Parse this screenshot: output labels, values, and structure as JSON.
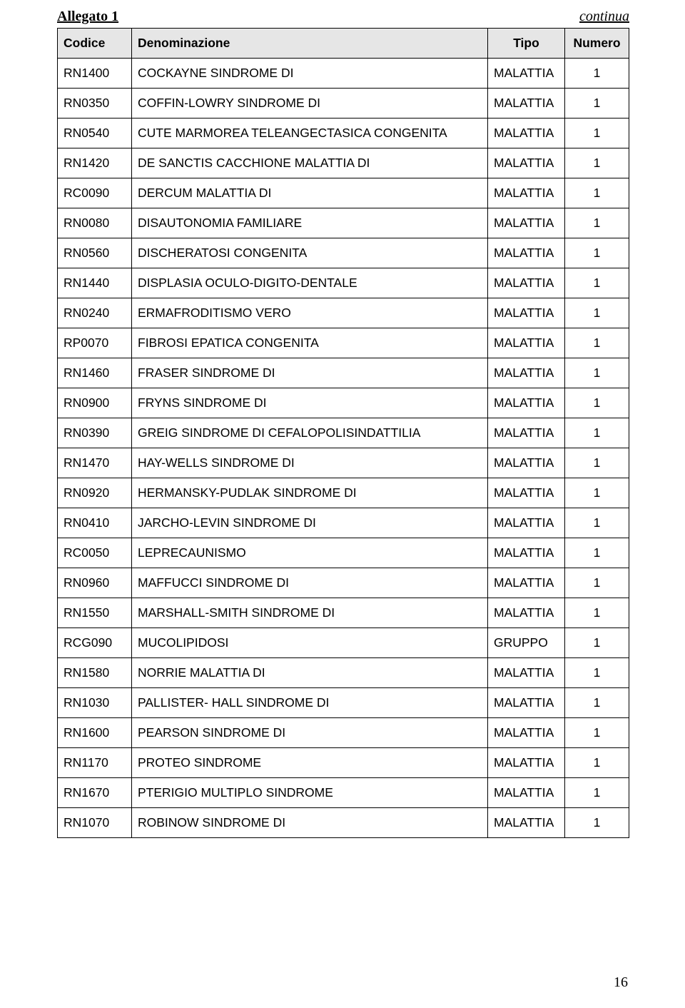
{
  "header": {
    "left": "Allegato 1",
    "right": "continua"
  },
  "table": {
    "columns": [
      "Codice",
      "Denominazione",
      "Tipo",
      "Numero"
    ],
    "rows": [
      [
        "RN1400",
        "COCKAYNE SINDROME DI",
        "MALATTIA",
        "1"
      ],
      [
        "RN0350",
        "COFFIN-LOWRY SINDROME DI",
        "MALATTIA",
        "1"
      ],
      [
        "RN0540",
        "CUTE MARMOREA TELEANGECTASICA CONGENITA",
        "MALATTIA",
        "1"
      ],
      [
        "RN1420",
        "DE SANCTIS CACCHIONE MALATTIA DI",
        "MALATTIA",
        "1"
      ],
      [
        "RC0090",
        "DERCUM MALATTIA DI",
        "MALATTIA",
        "1"
      ],
      [
        "RN0080",
        "DISAUTONOMIA FAMILIARE",
        "MALATTIA",
        "1"
      ],
      [
        "RN0560",
        "DISCHERATOSI CONGENITA",
        "MALATTIA",
        "1"
      ],
      [
        "RN1440",
        "DISPLASIA OCULO-DIGITO-DENTALE",
        "MALATTIA",
        "1"
      ],
      [
        "RN0240",
        "ERMAFRODITISMO VERO",
        "MALATTIA",
        "1"
      ],
      [
        "RP0070",
        "FIBROSI EPATICA CONGENITA",
        "MALATTIA",
        "1"
      ],
      [
        "RN1460",
        "FRASER SINDROME DI",
        "MALATTIA",
        "1"
      ],
      [
        "RN0900",
        "FRYNS SINDROME DI",
        "MALATTIA",
        "1"
      ],
      [
        "RN0390",
        "GREIG SINDROME DI CEFALOPOLISINDATTILIA",
        "MALATTIA",
        "1"
      ],
      [
        "RN1470",
        "HAY-WELLS SINDROME DI",
        "MALATTIA",
        "1"
      ],
      [
        "RN0920",
        "HERMANSKY-PUDLAK SINDROME DI",
        "MALATTIA",
        "1"
      ],
      [
        "RN0410",
        "JARCHO-LEVIN SINDROME DI",
        "MALATTIA",
        "1"
      ],
      [
        "RC0050",
        "LEPRECAUNISMO",
        "MALATTIA",
        "1"
      ],
      [
        "RN0960",
        "MAFFUCCI SINDROME DI",
        "MALATTIA",
        "1"
      ],
      [
        "RN1550",
        "MARSHALL-SMITH SINDROME DI",
        "MALATTIA",
        "1"
      ],
      [
        "RCG090",
        "MUCOLIPIDOSI",
        "GRUPPO",
        "1"
      ],
      [
        "RN1580",
        "NORRIE MALATTIA DI",
        "MALATTIA",
        "1"
      ],
      [
        "RN1030",
        "PALLISTER- HALL SINDROME DI",
        "MALATTIA",
        "1"
      ],
      [
        "RN1600",
        "PEARSON SINDROME DI",
        "MALATTIA",
        "1"
      ],
      [
        "RN1170",
        "PROTEO SINDROME",
        "MALATTIA",
        "1"
      ],
      [
        "RN1670",
        "PTERIGIO MULTIPLO SINDROME",
        "MALATTIA",
        "1"
      ],
      [
        "RN1070",
        "ROBINOW SINDROME DI",
        "MALATTIA",
        "1"
      ]
    ]
  },
  "page_number": "16",
  "styles": {
    "header_bg": "#e6e6e6",
    "border_color": "#000000",
    "body_font_size": 17.5,
    "header_font_size": 20
  }
}
